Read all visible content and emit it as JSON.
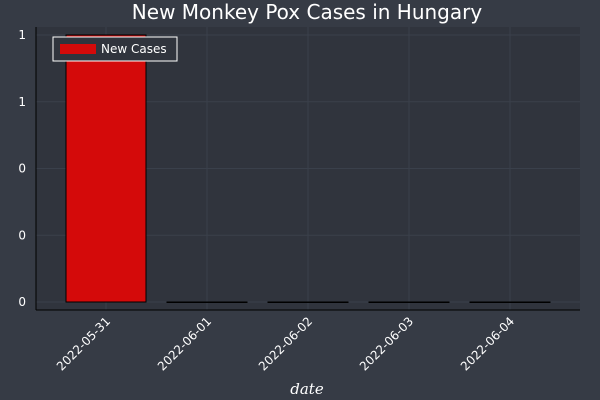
{
  "chart_data": {
    "type": "bar",
    "title": "New Monkey Pox Cases in Hungary",
    "xlabel": "date",
    "ylabel": "",
    "categories": [
      "2022-05-31",
      "2022-06-01",
      "2022-06-02",
      "2022-06-03",
      "2022-06-04"
    ],
    "series": [
      {
        "name": "New Cases",
        "values": [
          1,
          0,
          0,
          0,
          0
        ]
      }
    ],
    "ylim": [
      0,
      1
    ],
    "yticks": [
      0,
      0.25,
      0.5,
      0.75,
      1
    ],
    "ytick_labels": [
      "0",
      "0",
      "0",
      "1",
      "1"
    ],
    "legend_position": "top-left",
    "grid": true,
    "colors": {
      "background": "#363b45",
      "plot_background": "#30343d",
      "bar": "#d40a0a",
      "text": "#ffffff",
      "grid": "#3a404b",
      "legend_border": "#ffffff"
    }
  }
}
